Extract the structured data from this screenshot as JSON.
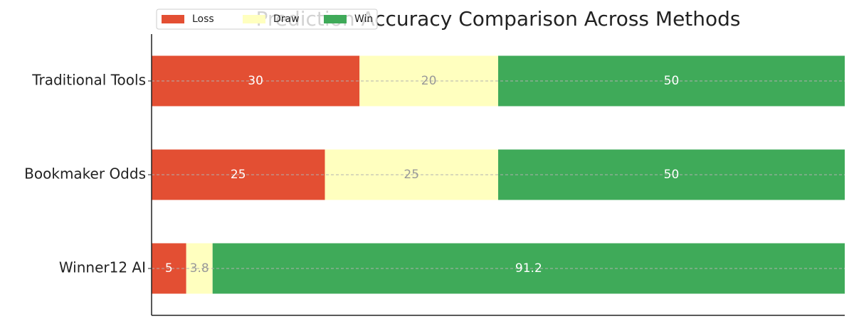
{
  "chart_data": {
    "type": "stacked-barh",
    "title": "Prediction Accuracy Comparison Across Methods",
    "categories": [
      "Traditional Tools",
      "Bookmaker Odds",
      "Winner12 AI"
    ],
    "series": [
      {
        "name": "Loss",
        "color": "#e34f33",
        "values": [
          30,
          25,
          5
        ]
      },
      {
        "name": "Draw",
        "color": "#ffffbf",
        "values": [
          20,
          25,
          3.8
        ]
      },
      {
        "name": "Win",
        "color": "#3faa59",
        "values": [
          50,
          50,
          91.2
        ]
      }
    ],
    "xlim": [
      0,
      100
    ],
    "grid": true,
    "legend": "upper left"
  }
}
